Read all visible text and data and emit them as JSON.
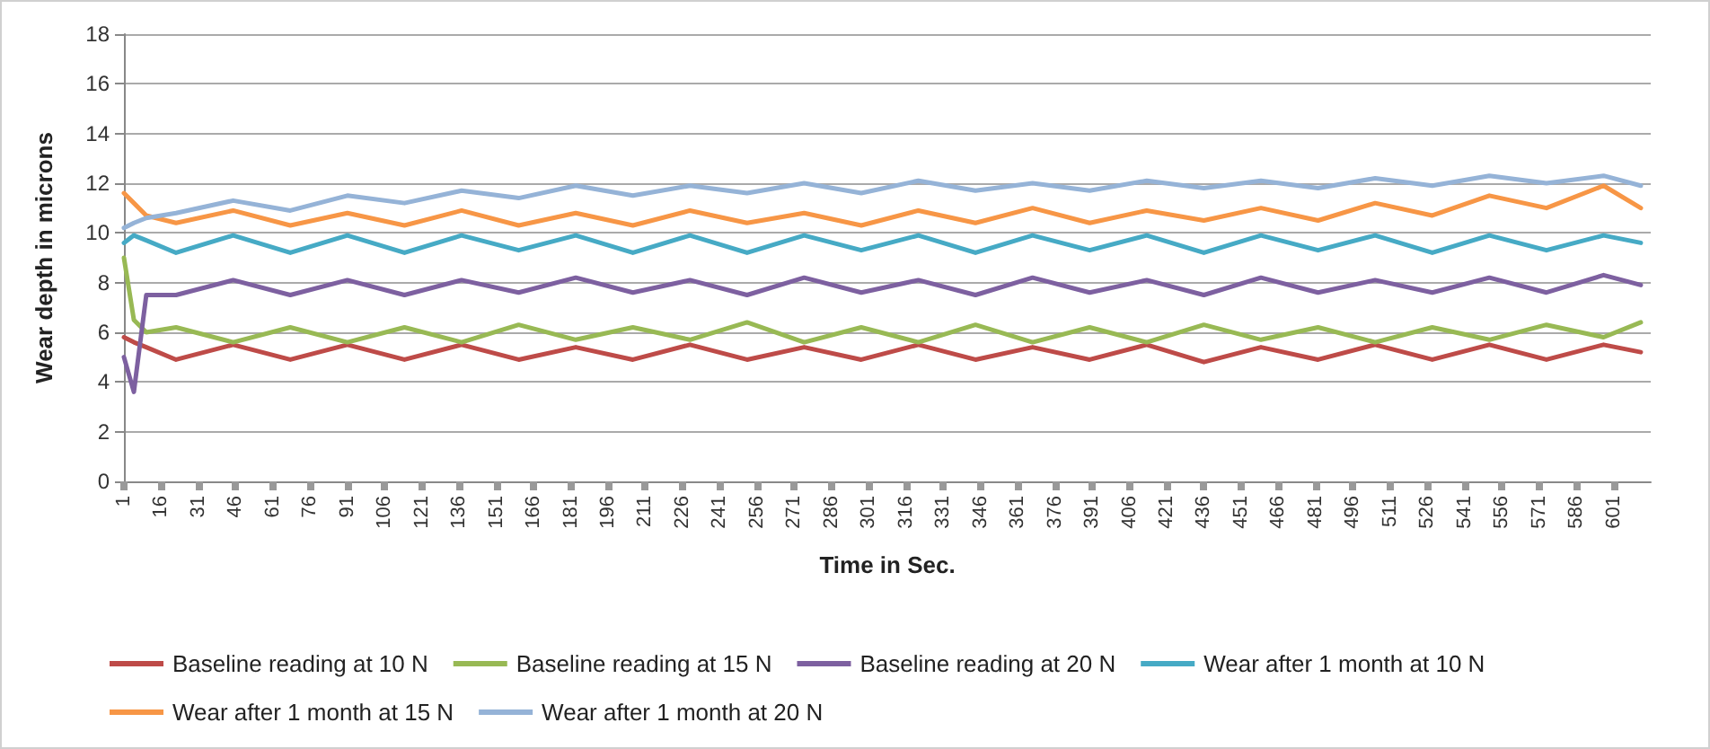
{
  "chart_data": {
    "type": "line",
    "xlabel": "Time in Sec.",
    "ylabel": "Wear depth in microns",
    "x": [
      1,
      5,
      10,
      22,
      45,
      68,
      91,
      114,
      137,
      160,
      183,
      206,
      229,
      252,
      275,
      298,
      321,
      344,
      367,
      390,
      413,
      436,
      459,
      482,
      505,
      528,
      551,
      574,
      597,
      612
    ],
    "xlim": [
      1,
      616
    ],
    "xticks": [
      1,
      16,
      31,
      46,
      61,
      76,
      91,
      106,
      121,
      136,
      151,
      166,
      181,
      196,
      211,
      226,
      241,
      256,
      271,
      286,
      301,
      316,
      331,
      346,
      361,
      376,
      391,
      406,
      421,
      436,
      451,
      466,
      481,
      496,
      511,
      526,
      541,
      556,
      571,
      586,
      601
    ],
    "ylim": [
      0,
      18
    ],
    "yticks": [
      0,
      2,
      4,
      6,
      8,
      10,
      12,
      14,
      16,
      18
    ],
    "grid": "y",
    "legend": "bottom",
    "marker": "none",
    "line_style": "solid",
    "series": [
      {
        "name": "Baseline reading at 10 N",
        "color": "#be4b48",
        "values": [
          5.8,
          5.6,
          5.4,
          4.9,
          5.5,
          4.9,
          5.5,
          4.9,
          5.5,
          4.9,
          5.4,
          4.9,
          5.5,
          4.9,
          5.4,
          4.9,
          5.5,
          4.9,
          5.4,
          4.9,
          5.5,
          4.8,
          5.4,
          4.9,
          5.5,
          4.9,
          5.5,
          4.9,
          5.5,
          5.2
        ]
      },
      {
        "name": "Baseline reading at 15 N",
        "color": "#98b954",
        "values": [
          9.0,
          6.5,
          6.0,
          6.2,
          5.6,
          6.2,
          5.6,
          6.2,
          5.6,
          6.3,
          5.7,
          6.2,
          5.7,
          6.4,
          5.6,
          6.2,
          5.6,
          6.3,
          5.6,
          6.2,
          5.6,
          6.3,
          5.7,
          6.2,
          5.6,
          6.2,
          5.7,
          6.3,
          5.8,
          6.4
        ]
      },
      {
        "name": "Baseline reading at 20 N",
        "color": "#7d60a0",
        "values": [
          5.0,
          3.6,
          7.5,
          7.5,
          8.1,
          7.5,
          8.1,
          7.5,
          8.1,
          7.6,
          8.2,
          7.6,
          8.1,
          7.5,
          8.2,
          7.6,
          8.1,
          7.5,
          8.2,
          7.6,
          8.1,
          7.5,
          8.2,
          7.6,
          8.1,
          7.6,
          8.2,
          7.6,
          8.3,
          7.9
        ]
      },
      {
        "name": "Wear after 1 month at 10 N",
        "color": "#46aac5",
        "values": [
          9.6,
          9.9,
          9.7,
          9.2,
          9.9,
          9.2,
          9.9,
          9.2,
          9.9,
          9.3,
          9.9,
          9.2,
          9.9,
          9.2,
          9.9,
          9.3,
          9.9,
          9.2,
          9.9,
          9.3,
          9.9,
          9.2,
          9.9,
          9.3,
          9.9,
          9.2,
          9.9,
          9.3,
          9.9,
          9.6
        ]
      },
      {
        "name": "Wear after 1 month at 15 N",
        "color": "#f79646",
        "values": [
          11.6,
          11.2,
          10.7,
          10.4,
          10.9,
          10.3,
          10.8,
          10.3,
          10.9,
          10.3,
          10.8,
          10.3,
          10.9,
          10.4,
          10.8,
          10.3,
          10.9,
          10.4,
          11.0,
          10.4,
          10.9,
          10.5,
          11.0,
          10.5,
          11.2,
          10.7,
          11.5,
          11.0,
          11.9,
          11.0
        ]
      },
      {
        "name": "Wear after 1 month at 20 N",
        "color": "#95b3d7",
        "values": [
          10.2,
          10.4,
          10.6,
          10.8,
          11.3,
          10.9,
          11.5,
          11.2,
          11.7,
          11.4,
          11.9,
          11.5,
          11.9,
          11.6,
          12.0,
          11.6,
          12.1,
          11.7,
          12.0,
          11.7,
          12.1,
          11.8,
          12.1,
          11.8,
          12.2,
          11.9,
          12.3,
          12.0,
          12.3,
          11.9
        ]
      }
    ]
  }
}
